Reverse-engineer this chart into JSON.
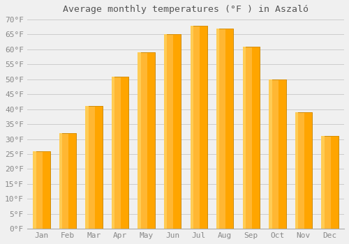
{
  "title": "Average monthly temperatures (°F ) in Aszaló",
  "months": [
    "Jan",
    "Feb",
    "Mar",
    "Apr",
    "May",
    "Jun",
    "Jul",
    "Aug",
    "Sep",
    "Oct",
    "Nov",
    "Dec"
  ],
  "values": [
    26.0,
    32.0,
    41.0,
    51.0,
    59.0,
    65.0,
    68.0,
    67.0,
    61.0,
    50.0,
    39.0,
    31.0
  ],
  "bar_color_main": "#FFA500",
  "bar_color_light": "#FFB733",
  "bar_color_highlight": "#FFCC55",
  "bar_edge_color": "#CC8800",
  "background_color": "#F0F0F0",
  "grid_color": "#CCCCCC",
  "ylim": [
    0,
    70
  ],
  "ytick_step": 5,
  "title_fontsize": 9.5,
  "tick_fontsize": 8,
  "tick_label_color": "#888888",
  "title_color": "#555555"
}
